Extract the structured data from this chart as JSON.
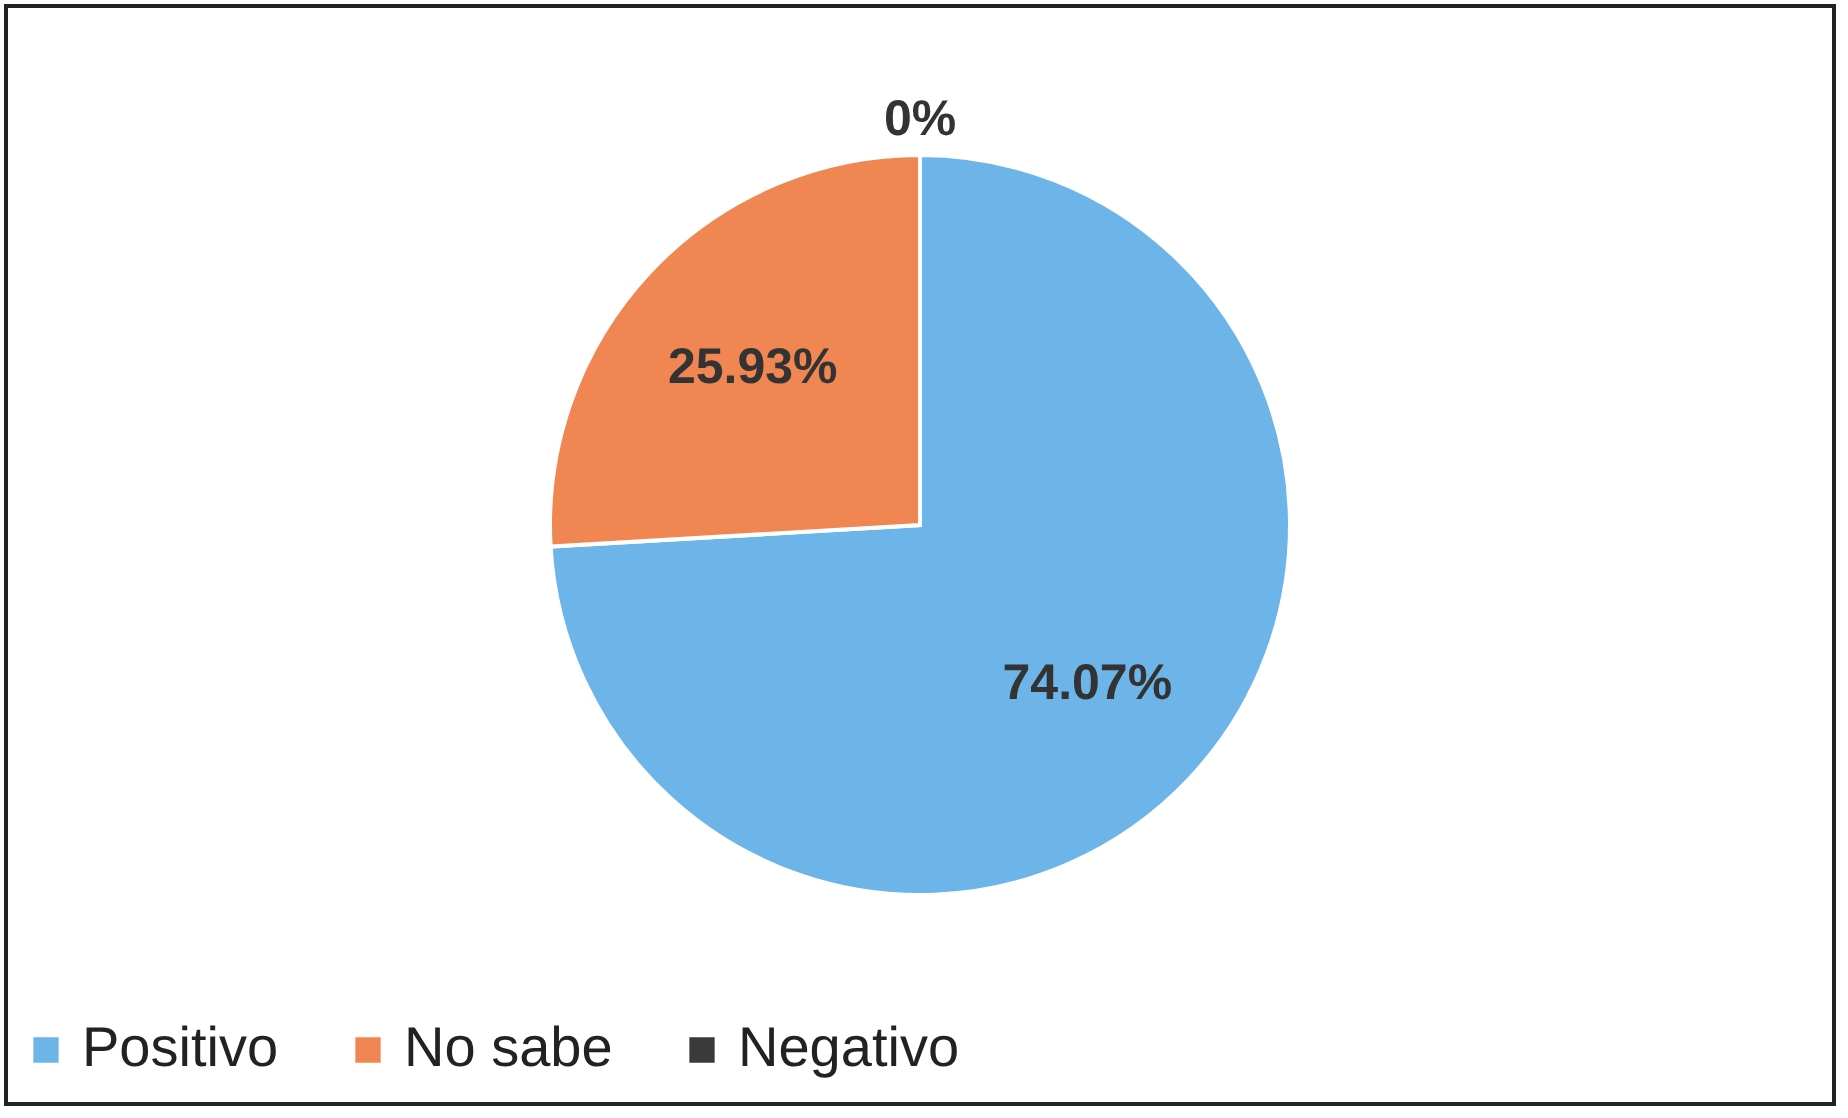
{
  "chart_data": {
    "type": "pie",
    "categories": [
      "Positivo",
      "No sabe",
      "Negativo"
    ],
    "values": [
      74.07,
      25.93,
      0
    ],
    "colors": [
      "#6db5e8",
      "#f08651",
      "#3a3a3a"
    ],
    "value_labels": [
      "74.07%",
      "25.93%",
      "0%"
    ],
    "legend": "bottom"
  }
}
